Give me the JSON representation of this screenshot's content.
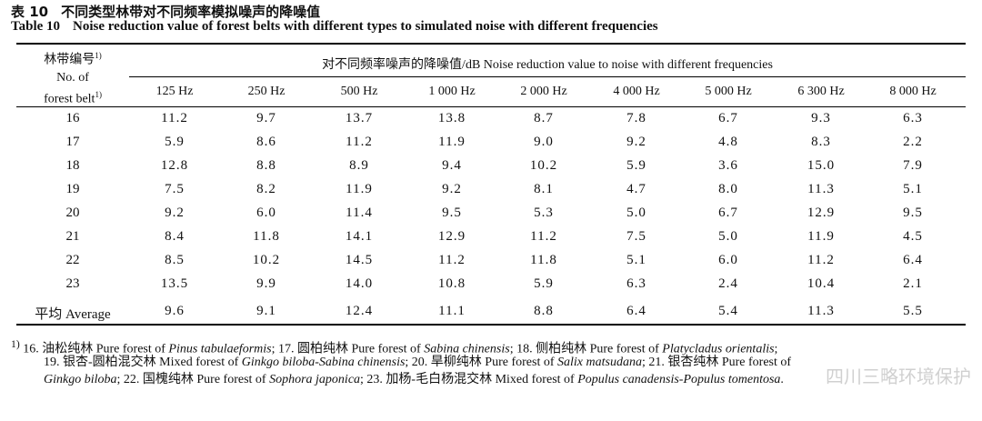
{
  "caption": {
    "cn_number": "表 10",
    "cn_title": "不同类型林带对不同频率模拟噪声的降噪值",
    "en_number": "Table 10",
    "en_title": "Noise reduction value of forest belts with different types to simulated noise with different frequencies"
  },
  "header": {
    "belt_cn": "林带编号",
    "belt_en_1": "No. of",
    "belt_en_2": "forest belt",
    "note_mark": "1)",
    "span": "对不同频率噪声的降噪值/dB   Noise reduction value to noise with different frequencies",
    "frequencies": [
      "125 Hz",
      "250 Hz",
      "500 Hz",
      "1 000 Hz",
      "2 000 Hz",
      "4 000 Hz",
      "5 000 Hz",
      "6 300 Hz",
      "8 000 Hz"
    ]
  },
  "rows": [
    {
      "label": "16",
      "values": [
        "11.2",
        "9.7",
        "13.7",
        "13.8",
        "8.7",
        "7.8",
        "6.7",
        "9.3",
        "6.3"
      ]
    },
    {
      "label": "17",
      "values": [
        "5.9",
        "8.6",
        "11.2",
        "11.9",
        "9.0",
        "9.2",
        "4.8",
        "8.3",
        "2.2"
      ]
    },
    {
      "label": "18",
      "values": [
        "12.8",
        "8.8",
        "8.9",
        "9.4",
        "10.2",
        "5.9",
        "3.6",
        "15.0",
        "7.9"
      ]
    },
    {
      "label": "19",
      "values": [
        "7.5",
        "8.2",
        "11.9",
        "9.2",
        "8.1",
        "4.7",
        "8.0",
        "11.3",
        "5.1"
      ]
    },
    {
      "label": "20",
      "values": [
        "9.2",
        "6.0",
        "11.4",
        "9.5",
        "5.3",
        "5.0",
        "6.7",
        "12.9",
        "9.5"
      ]
    },
    {
      "label": "21",
      "values": [
        "8.4",
        "11.8",
        "14.1",
        "12.9",
        "11.2",
        "7.5",
        "5.0",
        "11.9",
        "4.5"
      ]
    },
    {
      "label": "22",
      "values": [
        "8.5",
        "10.2",
        "14.5",
        "11.2",
        "11.8",
        "5.1",
        "6.0",
        "11.2",
        "6.4"
      ]
    },
    {
      "label": "23",
      "values": [
        "13.5",
        "9.9",
        "14.0",
        "10.8",
        "5.9",
        "6.3",
        "2.4",
        "10.4",
        "2.1"
      ]
    }
  ],
  "average": {
    "label": "平均 Average",
    "values": [
      "9.6",
      "9.1",
      "12.4",
      "11.1",
      "8.8",
      "6.4",
      "5.4",
      "11.3",
      "5.5"
    ]
  },
  "footnote": {
    "mark": "1)",
    "line1_a": " 16. 油松纯林 Pure forest of ",
    "line1_b": "Pinus tabulaeformis",
    "line1_c": "; 17. 圆柏纯林 Pure forest of ",
    "line1_d": "Sabina chinensis",
    "line1_e": "; 18. 侧柏纯林 Pure forest of ",
    "line1_f": "Platycladus orientalis",
    "line1_g": ";",
    "line2_a": "19. 银杏-圆柏混交林 Mixed forest of ",
    "line2_b": "Ginkgo biloba-Sabina chinensis",
    "line2_c": "; 20. 旱柳纯林 Pure forest of ",
    "line2_d": "Salix matsudana",
    "line2_e": "; 21. 银杏纯林 Pure forest of",
    "line3_a": "Ginkgo biloba",
    "line3_b": "; 22. 国槐纯林 Pure forest of ",
    "line3_c": "Sophora japonica",
    "line3_d": "; 23. 加杨-毛白杨混交林 Mixed forest of ",
    "line3_e": "Populus canadensis-Populus tomentosa",
    "line3_f": "."
  },
  "watermark": "四川三略环境保护"
}
